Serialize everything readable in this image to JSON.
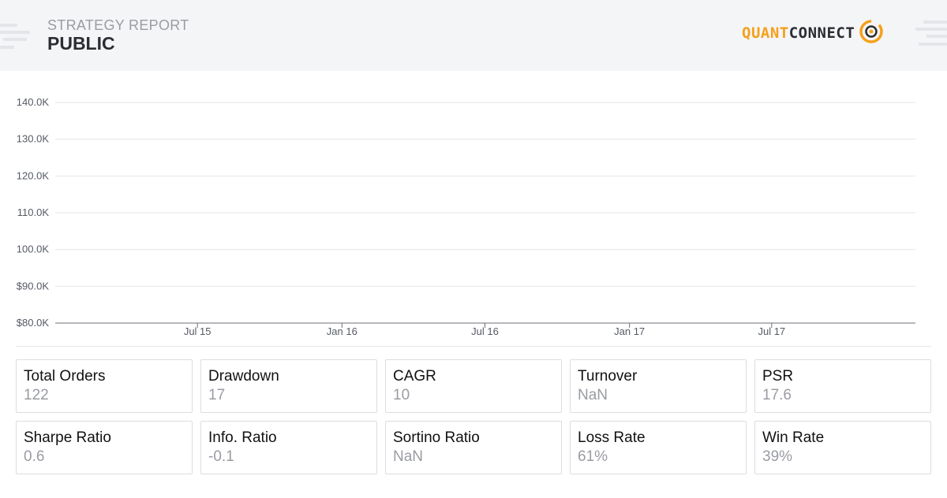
{
  "header": {
    "subtitle": "STRATEGY REPORT",
    "title": "PUBLIC",
    "logo_left": "QUANT",
    "logo_right": "CONNECT"
  },
  "colors": {
    "header_bg": "#f4f5f7",
    "brand_orange": "#f5a01a",
    "brand_dark": "#2b2d33",
    "value_gray": "#9a9ca3",
    "grid": "#e4e6ea",
    "axis": "#555a63"
  },
  "chart_data": {
    "type": "line",
    "title": "",
    "xlabel": "",
    "ylabel": "",
    "y_ticks": [
      "$80.0K",
      "$90.0K",
      "100.0K",
      "110.0K",
      "120.0K",
      "130.0K",
      "140.0K"
    ],
    "ylim": [
      80000,
      140000
    ],
    "x_ticks": [
      "Jul 15",
      "Jan 16",
      "Jul 16",
      "Jan 17",
      "Jul 17"
    ],
    "x_tick_dates": [
      "2015-07-01",
      "2016-01-01",
      "2016-07-01",
      "2017-01-01",
      "2017-07-01"
    ],
    "xlim": [
      "2015-01-01",
      "2017-12-31"
    ],
    "grid": true,
    "series": []
  },
  "stats": [
    {
      "label": "Total Orders",
      "value": "122"
    },
    {
      "label": "Drawdown",
      "value": "17"
    },
    {
      "label": "CAGR",
      "value": "10"
    },
    {
      "label": "Turnover",
      "value": "NaN"
    },
    {
      "label": "PSR",
      "value": "17.6"
    },
    {
      "label": "Sharpe Ratio",
      "value": "0.6"
    },
    {
      "label": "Info. Ratio",
      "value": "-0.1"
    },
    {
      "label": "Sortino Ratio",
      "value": "NaN"
    },
    {
      "label": "Loss Rate",
      "value": "61%"
    },
    {
      "label": "Win Rate",
      "value": "39%"
    }
  ]
}
